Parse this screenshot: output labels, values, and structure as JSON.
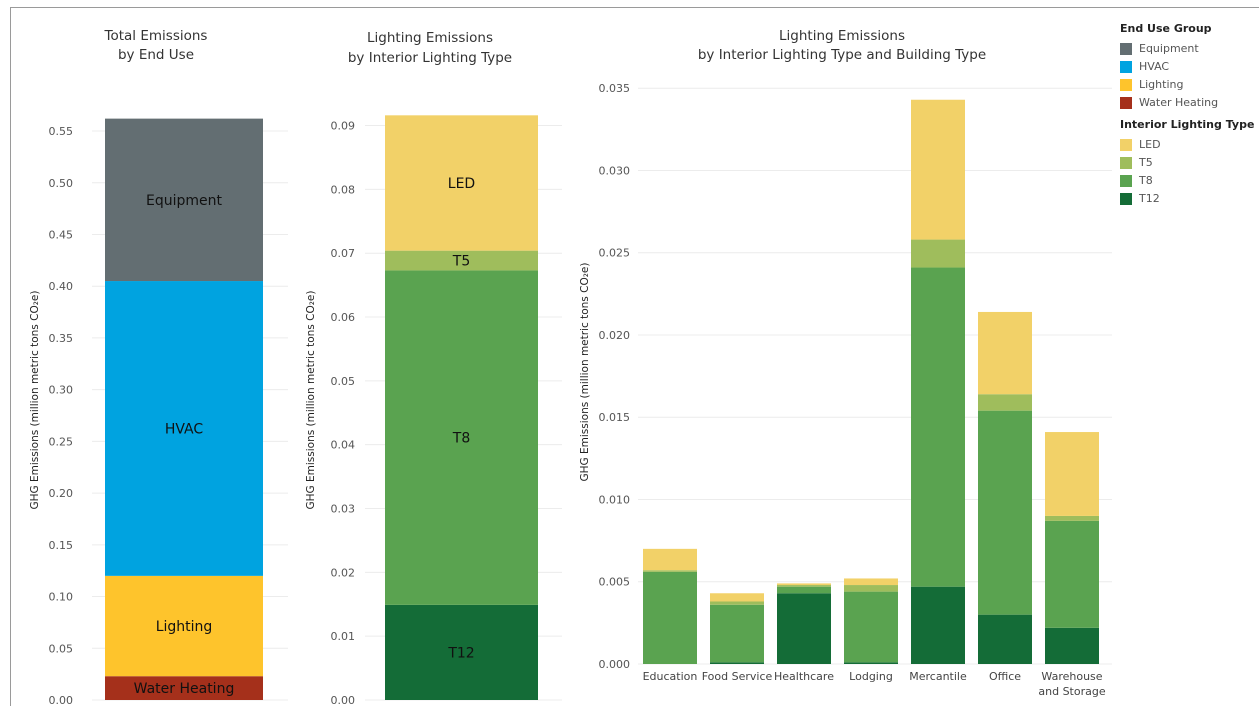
{
  "chart_data": [
    {
      "type": "bar",
      "stacked": true,
      "title_lines": [
        "Total Emissions",
        "by End Use"
      ],
      "ylabel": "GHG Emissions (million metric tons CO₂e)",
      "ylim": [
        0,
        0.58
      ],
      "yticks": [
        "0.00",
        "0.05",
        "0.10",
        "0.15",
        "0.20",
        "0.25",
        "0.30",
        "0.35",
        "0.40",
        "0.45",
        "0.50",
        "0.55"
      ],
      "ytick_values": [
        0,
        0.05,
        0.1,
        0.15,
        0.2,
        0.25,
        0.3,
        0.35,
        0.4,
        0.45,
        0.5,
        0.55
      ],
      "categories": [
        ""
      ],
      "series": [
        {
          "name": "Water Heating",
          "color": "#a5301b",
          "values": [
            0.023
          ]
        },
        {
          "name": "Lighting",
          "color": "#fec42c",
          "values": [
            0.097
          ]
        },
        {
          "name": "HVAC",
          "color": "#00a3e0",
          "values": [
            0.285
          ]
        },
        {
          "name": "Equipment",
          "color": "#636e72",
          "values": [
            0.157
          ]
        }
      ],
      "grid": true
    },
    {
      "type": "bar",
      "stacked": true,
      "title_lines": [
        "Lighting Emissions",
        "by Interior Lighting Type"
      ],
      "ylabel": "GHG Emissions (million metric tons CO₂e)",
      "ylim": [
        0,
        0.094
      ],
      "yticks": [
        "0.00",
        "0.01",
        "0.02",
        "0.03",
        "0.04",
        "0.05",
        "0.06",
        "0.07",
        "0.08",
        "0.09"
      ],
      "ytick_values": [
        0,
        0.01,
        0.02,
        0.03,
        0.04,
        0.05,
        0.06,
        0.07,
        0.08,
        0.09
      ],
      "categories": [
        ""
      ],
      "series": [
        {
          "name": "T12",
          "color": "#146c37",
          "values": [
            0.0149
          ]
        },
        {
          "name": "T8",
          "color": "#5aa350",
          "values": [
            0.0524
          ]
        },
        {
          "name": "T5",
          "color": "#9fbd5c",
          "values": [
            0.0031
          ]
        },
        {
          "name": "LED",
          "color": "#f2d168",
          "values": [
            0.0212
          ]
        }
      ],
      "grid": true
    },
    {
      "type": "bar",
      "stacked": true,
      "title_lines": [
        "Lighting Emissions",
        "by Interior Lighting Type and Building Type"
      ],
      "ylabel": "GHG Emissions (million metric tons CO₂e)",
      "ylim": [
        0,
        0.0355
      ],
      "yticks": [
        "0.000",
        "0.005",
        "0.010",
        "0.015",
        "0.020",
        "0.025",
        "0.030",
        "0.035"
      ],
      "ytick_values": [
        0,
        0.005,
        0.01,
        0.015,
        0.02,
        0.025,
        0.03,
        0.035
      ],
      "categories": [
        "Education",
        "Food Service",
        "Healthcare",
        "Lodging",
        "Mercantile",
        "Office",
        "Warehouse\nand Storage"
      ],
      "series": [
        {
          "name": "T12",
          "color": "#146c37",
          "values": [
            0.0,
            0.0001,
            0.0043,
            0.0001,
            0.0047,
            0.003,
            0.0022
          ]
        },
        {
          "name": "T8",
          "color": "#5aa350",
          "values": [
            0.0056,
            0.0035,
            0.0004,
            0.0043,
            0.0194,
            0.0124,
            0.0065
          ]
        },
        {
          "name": "T5",
          "color": "#9fbd5c",
          "values": [
            0.0001,
            0.0002,
            0.0001,
            0.0004,
            0.0017,
            0.001,
            0.0003
          ]
        },
        {
          "name": "LED",
          "color": "#f2d168",
          "values": [
            0.0013,
            0.0005,
            0.0001,
            0.0004,
            0.0085,
            0.005,
            0.0051
          ]
        }
      ],
      "grid": true
    }
  ],
  "legend": {
    "groups": [
      {
        "title": "End Use Group",
        "items": [
          {
            "label": "Equipment",
            "color": "#636e72"
          },
          {
            "label": "HVAC",
            "color": "#00a3e0"
          },
          {
            "label": "Lighting",
            "color": "#fec42c"
          },
          {
            "label": "Water Heating",
            "color": "#a5301b"
          }
        ]
      },
      {
        "title": "Interior Lighting Type",
        "items": [
          {
            "label": "LED",
            "color": "#f2d168"
          },
          {
            "label": "T5",
            "color": "#9fbd5c"
          },
          {
            "label": "T8",
            "color": "#5aa350"
          },
          {
            "label": "T12",
            "color": "#146c37"
          }
        ]
      }
    ]
  }
}
